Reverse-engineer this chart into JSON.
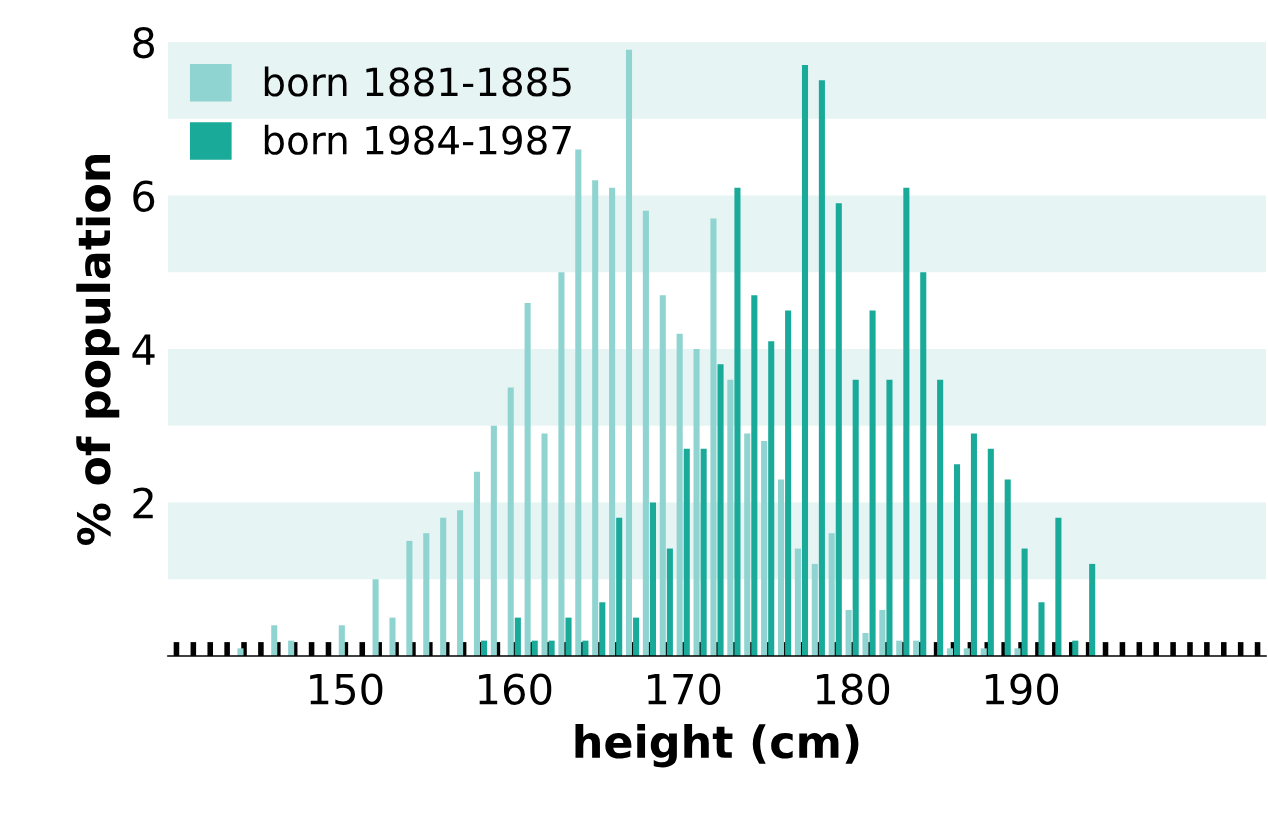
{
  "chart_data": {
    "type": "bar",
    "xlabel": "height (cm)",
    "ylabel": "% of population",
    "x": [
      144,
      145,
      146,
      147,
      148,
      149,
      150,
      151,
      152,
      153,
      154,
      155,
      156,
      157,
      158,
      159,
      160,
      161,
      162,
      163,
      164,
      165,
      166,
      167,
      168,
      169,
      170,
      171,
      172,
      173,
      174,
      175,
      176,
      177,
      178,
      179,
      180,
      181,
      182,
      183,
      184,
      185,
      186,
      187,
      188,
      189,
      190,
      191,
      192,
      193,
      194
    ],
    "series": [
      {
        "name": "born 1881-1885",
        "color": "#8fd4d0",
        "values": [
          0.1,
          null,
          0.4,
          0.2,
          null,
          null,
          0.4,
          null,
          1.0,
          0.5,
          1.5,
          1.6,
          1.8,
          1.9,
          2.4,
          3.0,
          3.5,
          4.6,
          2.9,
          5.0,
          6.6,
          6.2,
          6.1,
          7.9,
          5.8,
          4.7,
          4.2,
          4.0,
          5.7,
          3.6,
          2.9,
          2.8,
          2.3,
          1.4,
          1.2,
          1.6,
          0.6,
          0.3,
          0.6,
          0.2,
          0.2,
          null,
          0.1,
          0.1,
          0.1,
          null,
          0.1,
          null,
          null,
          null,
          null
        ]
      },
      {
        "name": "born 1984-1987",
        "color": "#1aaa9a",
        "values": [
          null,
          null,
          null,
          null,
          null,
          null,
          null,
          null,
          null,
          null,
          null,
          null,
          null,
          null,
          0.2,
          null,
          0.5,
          0.2,
          0.2,
          0.5,
          0.2,
          0.7,
          1.8,
          0.5,
          2.0,
          1.4,
          2.7,
          2.7,
          3.8,
          6.1,
          4.7,
          4.1,
          4.5,
          7.7,
          7.5,
          5.9,
          3.6,
          4.5,
          3.6,
          6.1,
          5.0,
          3.6,
          2.5,
          2.9,
          2.7,
          2.3,
          1.4,
          0.7,
          1.8,
          0.2,
          1.2
        ]
      }
    ],
    "xlim": [
      139.5,
      204.5
    ],
    "xticks": [
      {
        "value": 140,
        "label": null
      },
      {
        "value": 141,
        "label": null
      },
      {
        "value": 142,
        "label": null
      },
      {
        "value": 143,
        "label": null
      },
      {
        "value": 144,
        "label": null
      },
      {
        "value": 145,
        "label": null
      },
      {
        "value": 146,
        "label": null
      },
      {
        "value": 147,
        "label": null
      },
      {
        "value": 148,
        "label": null
      },
      {
        "value": 149,
        "label": null
      },
      150,
      {
        "value": 151,
        "label": null
      },
      {
        "value": 152,
        "label": null
      },
      {
        "value": 153,
        "label": null
      },
      {
        "value": 154,
        "label": null
      },
      {
        "value": 155,
        "label": null
      },
      {
        "value": 156,
        "label": null
      },
      {
        "value": 157,
        "label": null
      },
      {
        "value": 158,
        "label": null
      },
      {
        "value": 159,
        "label": null
      },
      160,
      {
        "value": 161,
        "label": null
      },
      {
        "value": 162,
        "label": null
      },
      {
        "value": 163,
        "label": null
      },
      {
        "value": 164,
        "label": null
      },
      {
        "value": 165,
        "label": null
      },
      {
        "value": 166,
        "label": null
      },
      {
        "value": 167,
        "label": null
      },
      {
        "value": 168,
        "label": null
      },
      {
        "value": 169,
        "label": null
      },
      170,
      {
        "value": 171,
        "label": null
      },
      {
        "value": 172,
        "label": null
      },
      {
        "value": 173,
        "label": null
      },
      {
        "value": 174,
        "label": null
      },
      {
        "value": 175,
        "label": null
      },
      {
        "value": 176,
        "label": null
      },
      {
        "value": 177,
        "label": null
      },
      {
        "value": 178,
        "label": null
      },
      {
        "value": 179,
        "label": null
      },
      180,
      {
        "value": 181,
        "label": null
      },
      {
        "value": 182,
        "label": null
      },
      {
        "value": 183,
        "label": null
      },
      {
        "value": 184,
        "label": null
      },
      {
        "value": 185,
        "label": null
      },
      {
        "value": 186,
        "label": null
      },
      {
        "value": 187,
        "label": null
      },
      {
        "value": 188,
        "label": null
      },
      {
        "value": 189,
        "label": null
      },
      190,
      {
        "value": 191,
        "label": null
      },
      {
        "value": 192,
        "label": null
      },
      {
        "value": 193,
        "label": null
      },
      {
        "value": 194,
        "label": null
      },
      {
        "value": 195,
        "label": null
      },
      {
        "value": 196,
        "label": null
      },
      {
        "value": 197,
        "label": null
      },
      {
        "value": 198,
        "label": null
      },
      {
        "value": 199,
        "label": null
      },
      {
        "value": 200,
        "label": null
      },
      {
        "value": 201,
        "label": null
      },
      {
        "value": 202,
        "label": null
      },
      {
        "value": 203,
        "label": null
      },
      {
        "value": 204,
        "label": null
      }
    ],
    "ylim": [
      0,
      8
    ],
    "yticks": [
      2,
      4,
      6,
      8
    ],
    "bands": [
      {
        "axis": "y",
        "from": 1,
        "to": 2,
        "color": "#e6f4f3"
      },
      {
        "axis": "y",
        "from": 3,
        "to": 4,
        "color": "#e6f4f3"
      },
      {
        "axis": "y",
        "from": 5,
        "to": 6,
        "color": "#e6f4f3"
      },
      {
        "axis": "y",
        "from": 7,
        "to": 8,
        "color": "#e6f4f3"
      }
    ],
    "grid": false,
    "legend": "top left"
  }
}
